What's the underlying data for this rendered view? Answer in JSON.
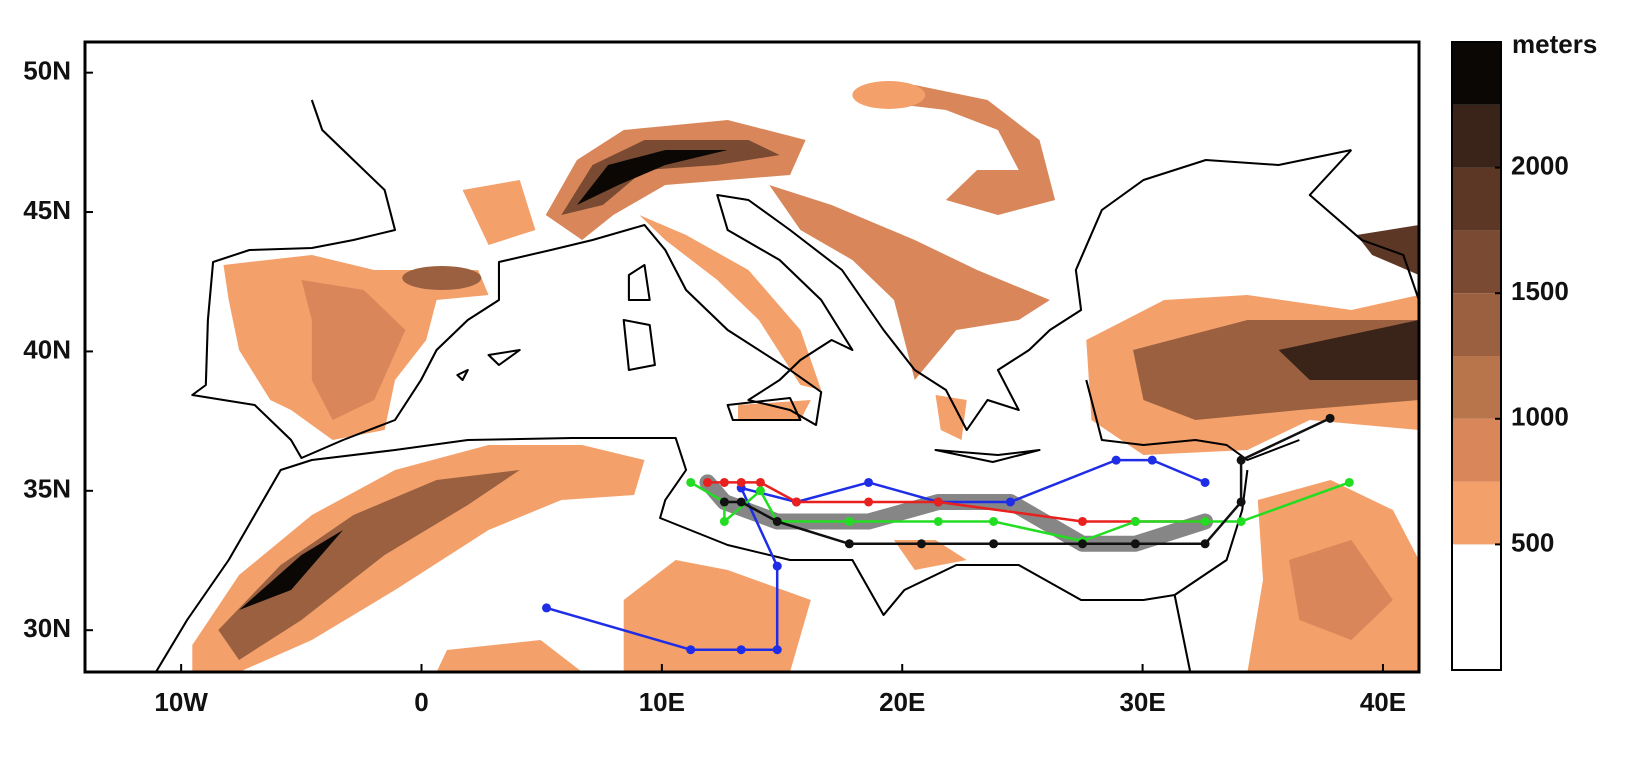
{
  "chart_data": {
    "type": "map",
    "xlim": [
      -14,
      41.5
    ],
    "ylim": [
      28.5,
      51.1
    ],
    "xticks": [
      {
        "value": -10,
        "label": "10W"
      },
      0,
      {
        "value": 10,
        "label": "10E"
      },
      {
        "value": 20,
        "label": "20E"
      },
      {
        "value": 30,
        "label": "30E"
      },
      {
        "value": 40,
        "label": "40E"
      }
    ],
    "yticks": [
      {
        "value": 30,
        "label": "30N"
      },
      {
        "value": 35,
        "label": "35N"
      },
      {
        "value": 40,
        "label": "40N"
      },
      {
        "value": 45,
        "label": "45N"
      },
      {
        "value": 50,
        "label": "50N"
      }
    ],
    "series": [
      {
        "color": "#808080",
        "style": "band",
        "x": [
          11.9,
          12.6,
          14.8,
          18.6,
          21.5,
          24.5,
          27.5,
          29.7,
          32.6
        ],
        "y": [
          35.3,
          34.6,
          33.9,
          33.9,
          34.6,
          34.6,
          33.1,
          33.1,
          33.9
        ]
      },
      {
        "color": "#1f2ee6",
        "style": "track",
        "x": [
          5.2,
          11.2,
          13.3,
          14.8,
          14.8,
          13.3,
          15.6,
          18.6,
          21.5,
          24.5,
          28.9,
          30.4,
          32.6
        ],
        "y": [
          30.8,
          29.3,
          29.3,
          29.3,
          32.3,
          35.1,
          34.6,
          35.3,
          34.6,
          34.6,
          36.1,
          36.1,
          35.3
        ]
      },
      {
        "color": "#e8201e",
        "style": "track",
        "x": [
          11.9,
          12.6,
          13.3,
          14.1,
          15.6,
          18.6,
          21.5,
          27.5,
          29.7,
          32.6
        ],
        "y": [
          35.3,
          35.3,
          35.3,
          35.3,
          34.6,
          34.6,
          34.6,
          33.9,
          33.9,
          33.9
        ]
      },
      {
        "color": "#22dd22",
        "style": "track",
        "x": [
          11.2,
          12.6,
          12.6,
          14.1,
          14.8,
          17.8,
          21.5,
          23.8,
          27.5,
          29.7,
          32.6,
          34.1,
          38.6
        ],
        "y": [
          35.3,
          34.6,
          33.9,
          35.0,
          33.9,
          33.9,
          33.9,
          33.9,
          33.2,
          33.9,
          33.9,
          33.9,
          35.3
        ]
      },
      {
        "color": "#111111",
        "style": "track",
        "x": [
          12.6,
          13.3,
          14.8,
          17.8,
          20.8,
          23.8,
          27.5,
          29.7,
          32.6,
          34.1,
          34.1,
          37.8
        ],
        "y": [
          34.6,
          34.6,
          33.9,
          33.1,
          33.1,
          33.1,
          33.1,
          33.1,
          33.1,
          34.6,
          36.1,
          37.6
        ]
      }
    ],
    "colorbar": {
      "label": "meters",
      "lim": [
        0,
        2500
      ],
      "ticks": [
        500,
        1000,
        1500,
        2000
      ],
      "levels": [
        0,
        500,
        750,
        1000,
        1250,
        1500,
        1750,
        2000,
        2250,
        2500
      ],
      "colors": [
        "#ffffff",
        "#f4a06a",
        "#d9875a",
        "#b8754b",
        "#9a6040",
        "#7a4b32",
        "#5c3725",
        "#3a2318",
        "#0a0705"
      ]
    }
  }
}
